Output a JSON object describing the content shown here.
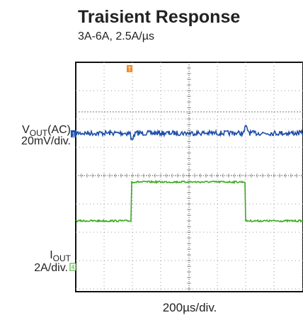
{
  "chart_data": {
    "type": "oscilloscope",
    "title": "Traisient Response",
    "subtitle": "3A-6A, 2.5A/µs",
    "channels": [
      {
        "symbol": "V",
        "subscript": "OUT",
        "suffix": "(AC)",
        "scale": "20mV/div.",
        "color": "#1f4fa8",
        "marker": "1"
      },
      {
        "symbol": "I",
        "subscript": "OUT",
        "scale": "2A/div.",
        "color": "#3aaa1e",
        "marker": "4"
      }
    ],
    "trigger_marker": "T",
    "x_scale": "200µs/div."
  }
}
